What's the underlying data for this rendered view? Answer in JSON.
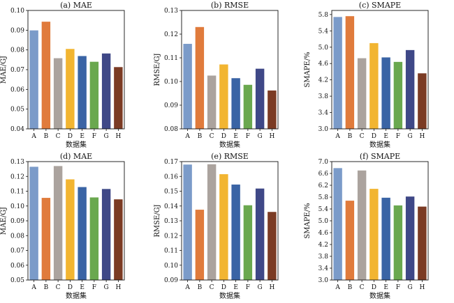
{
  "colors": [
    "#7b9bc9",
    "#e07b3c",
    "#aba39e",
    "#f2b531",
    "#3a64a5",
    "#6aa84f",
    "#3f4887",
    "#7b3b24"
  ],
  "chart_data": [
    {
      "type": "bar",
      "title": "(a) MAE",
      "xlabel": "数据集",
      "ylabel": "MAE/GJ",
      "categories": [
        "A",
        "B",
        "C",
        "D",
        "E",
        "F",
        "G",
        "H"
      ],
      "values": [
        0.0899,
        0.0943,
        0.0758,
        0.0805,
        0.0769,
        0.074,
        0.0782,
        0.0713
      ],
      "ylim": [
        0.04,
        0.1
      ],
      "yticks": [
        "0.04",
        "0.05",
        "0.06",
        "0.07",
        "0.08",
        "0.09",
        "0.10"
      ]
    },
    {
      "type": "bar",
      "title": "(b) RMSE",
      "xlabel": "数据集",
      "ylabel": "RMSE/GJ",
      "categories": [
        "A",
        "B",
        "C",
        "D",
        "E",
        "F",
        "G",
        "H"
      ],
      "values": [
        0.1159,
        0.123,
        0.1025,
        0.1072,
        0.1014,
        0.0986,
        0.1054,
        0.0962
      ],
      "ylim": [
        0.08,
        0.13
      ],
      "yticks": [
        "0.08",
        "0.09",
        "0.10",
        "0.11",
        "0.12",
        "0.13"
      ]
    },
    {
      "type": "bar",
      "title": "(c) SMAPE",
      "xlabel": "数据集",
      "ylabel": "SMAPE/%",
      "categories": [
        "A",
        "B",
        "C",
        "D",
        "E",
        "F",
        "G",
        "H"
      ],
      "values": [
        5.74,
        5.76,
        4.73,
        5.1,
        4.75,
        4.64,
        4.93,
        4.36
      ],
      "ylim": [
        3.0,
        5.9
      ],
      "yticks": [
        "3.0",
        "3.4",
        "3.8",
        "4.2",
        "4.6",
        "5.0",
        "5.4",
        "5.8"
      ]
    },
    {
      "type": "bar",
      "title": "(d) MAE",
      "xlabel": "数据集",
      "ylabel": "MAE/GJ",
      "categories": [
        "A",
        "B",
        "C",
        "D",
        "E",
        "F",
        "G",
        "H"
      ],
      "values": [
        0.1265,
        0.1055,
        0.127,
        0.118,
        0.1128,
        0.1058,
        0.1115,
        0.1045
      ],
      "ylim": [
        0.05,
        0.13
      ],
      "yticks": [
        "0.05",
        "0.06",
        "0.07",
        "0.08",
        "0.09",
        "0.10",
        "0.11",
        "0.12",
        "0.13"
      ]
    },
    {
      "type": "bar",
      "title": "(e) RMSE",
      "xlabel": "数据集",
      "ylabel": "RMSE/GJ",
      "categories": [
        "A",
        "B",
        "C",
        "D",
        "E",
        "F",
        "G",
        "H"
      ],
      "values": [
        0.168,
        0.1375,
        0.1682,
        0.1615,
        0.1545,
        0.1405,
        0.1518,
        0.136
      ],
      "ylim": [
        0.09,
        0.17
      ],
      "yticks": [
        "0.09",
        "0.10",
        "0.11",
        "0.12",
        "0.13",
        "0.14",
        "0.15",
        "0.16",
        "0.17"
      ]
    },
    {
      "type": "bar",
      "title": "(f) SMAPE",
      "xlabel": "数据集",
      "ylabel": "SMAPE/%",
      "categories": [
        "A",
        "B",
        "C",
        "D",
        "E",
        "F",
        "G",
        "H"
      ],
      "values": [
        6.78,
        5.68,
        6.7,
        6.08,
        5.78,
        5.52,
        5.82,
        5.48
      ],
      "ylim": [
        3.0,
        7.0
      ],
      "yticks": [
        "3.0",
        "3.4",
        "3.8",
        "4.2",
        "4.6",
        "5.0",
        "5.4",
        "5.8",
        "6.2",
        "6.6",
        "7.0"
      ]
    }
  ]
}
